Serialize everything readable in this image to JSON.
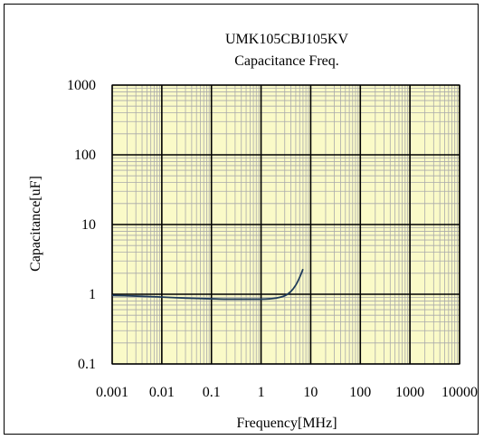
{
  "chart_data": {
    "type": "line",
    "title": "UMK105CBJ105KV",
    "subtitle": "Capacitance Freq.",
    "xlabel": "Frequency[MHz]",
    "ylabel": "Capacitance[uF]",
    "x_scale": "log",
    "y_scale": "log",
    "xlim": [
      0.001,
      10000
    ],
    "ylim": [
      0.1,
      1000
    ],
    "x_ticks": [
      "0.001",
      "0.01",
      "0.1",
      "1",
      "10",
      "100",
      "1000",
      "10000"
    ],
    "y_ticks": [
      "0.1",
      "1",
      "10",
      "100",
      "1000"
    ],
    "grid": true,
    "legend": "none",
    "colors": {
      "plot_background": "#fafac8",
      "minor_grid": "#aaaaaa",
      "major_grid": "#000000",
      "line": "#1f3b5a"
    },
    "series": [
      {
        "x": [
          0.001,
          0.002,
          0.005,
          0.01,
          0.02,
          0.05,
          0.1,
          0.2,
          0.5,
          1,
          1.5,
          2,
          3,
          4,
          5,
          6,
          7
        ],
        "y": [
          0.96,
          0.95,
          0.93,
          0.91,
          0.89,
          0.87,
          0.86,
          0.85,
          0.85,
          0.85,
          0.86,
          0.88,
          0.95,
          1.1,
          1.35,
          1.75,
          2.3
        ]
      }
    ]
  }
}
